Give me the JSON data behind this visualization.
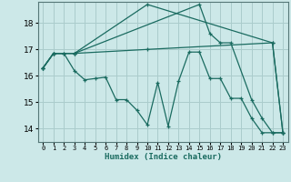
{
  "xlabel": "Humidex (Indice chaleur)",
  "background_color": "#cce8e8",
  "grid_color": "#aacccc",
  "line_color": "#1a6b60",
  "xlim": [
    -0.5,
    23.5
  ],
  "ylim": [
    13.5,
    18.8
  ],
  "yticks": [
    14,
    15,
    16,
    17,
    18
  ],
  "xticks": [
    0,
    1,
    2,
    3,
    4,
    5,
    6,
    7,
    8,
    9,
    10,
    11,
    12,
    13,
    14,
    15,
    16,
    17,
    18,
    19,
    20,
    21,
    22,
    23
  ],
  "series": [
    {
      "x": [
        0,
        1,
        2,
        3,
        10,
        22,
        23
      ],
      "y": [
        16.3,
        16.85,
        16.85,
        16.85,
        17.0,
        17.25,
        13.85
      ]
    },
    {
      "x": [
        0,
        1,
        2,
        3,
        4,
        5,
        6,
        7,
        8,
        9,
        10,
        11,
        12,
        13,
        14,
        15,
        16,
        17,
        18,
        19,
        20,
        21,
        22,
        23
      ],
      "y": [
        16.3,
        16.85,
        16.85,
        16.2,
        15.85,
        15.9,
        15.95,
        15.1,
        15.1,
        14.7,
        14.15,
        15.75,
        14.1,
        15.8,
        16.9,
        16.9,
        15.9,
        15.9,
        15.15,
        15.15,
        14.4,
        13.85,
        13.85,
        13.85
      ]
    },
    {
      "x": [
        0,
        1,
        3,
        10,
        22,
        23
      ],
      "y": [
        16.3,
        16.85,
        16.85,
        18.7,
        17.25,
        13.85
      ]
    },
    {
      "x": [
        0,
        1,
        3,
        15,
        16,
        17,
        18,
        20,
        21,
        22,
        23
      ],
      "y": [
        16.3,
        16.85,
        16.85,
        18.7,
        17.6,
        17.25,
        17.25,
        15.1,
        14.4,
        13.85,
        13.85
      ]
    }
  ]
}
